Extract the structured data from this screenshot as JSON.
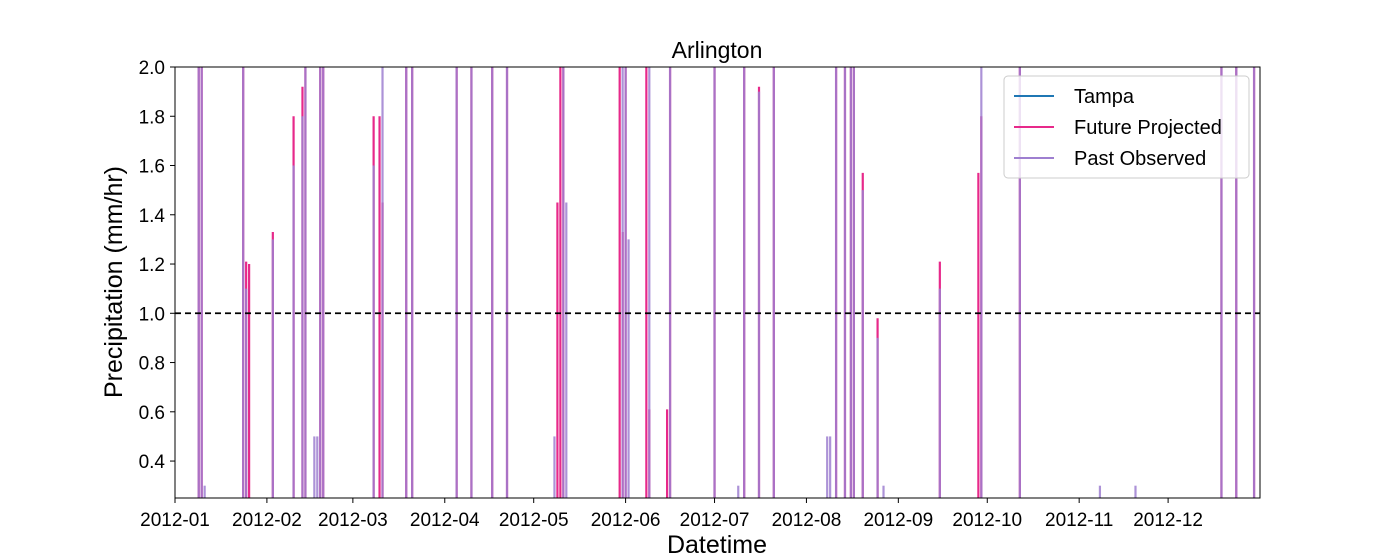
{
  "chart_data": {
    "type": "line",
    "title": "Arlington",
    "xlabel": "Datetime",
    "ylabel": "Precipitation (mm/hr)",
    "xlim": [
      "2012-01-01",
      "2013-01-01"
    ],
    "ylim": [
      0.25,
      2.0
    ],
    "x_ticks": [
      "2012-01",
      "2012-02",
      "2012-03",
      "2012-04",
      "2012-05",
      "2012-06",
      "2012-07",
      "2012-08",
      "2012-09",
      "2012-10",
      "2012-11",
      "2012-12"
    ],
    "y_ticks": [
      0.4,
      0.6,
      0.8,
      1.0,
      1.2,
      1.4,
      1.6,
      1.8,
      2.0
    ],
    "y_tick_labels": [
      "0.4",
      "0.6",
      "0.8",
      "1.0",
      "1.2",
      "1.4",
      "1.6",
      "1.8",
      "2.0"
    ],
    "reference_line": {
      "y": 1.0,
      "style": "dashed",
      "color": "#000000"
    },
    "legend": {
      "location": "top-right"
    },
    "grid": false,
    "series": [
      {
        "name": "Tampa",
        "color": "#1f77b4",
        "x": [],
        "y": []
      },
      {
        "name": "Future Projected",
        "color": "#e7298a",
        "x": [
          "2012-01-09",
          "2012-01-10",
          "2012-01-24",
          "2012-01-25",
          "2012-01-26",
          "2012-02-03",
          "2012-02-10",
          "2012-02-13",
          "2012-02-14",
          "2012-02-19",
          "2012-02-20",
          "2012-03-08",
          "2012-03-10",
          "2012-03-11",
          "2012-03-19",
          "2012-03-21",
          "2012-04-05",
          "2012-04-10",
          "2012-04-17",
          "2012-04-22",
          "2012-05-09",
          "2012-05-10",
          "2012-05-11",
          "2012-05-30",
          "2012-05-31",
          "2012-06-01",
          "2012-06-08",
          "2012-06-09",
          "2012-06-15",
          "2012-06-16",
          "2012-07-01",
          "2012-07-11",
          "2012-07-16",
          "2012-07-21",
          "2012-08-11",
          "2012-08-14",
          "2012-08-16",
          "2012-08-17",
          "2012-08-20",
          "2012-08-25",
          "2012-09-15",
          "2012-09-28",
          "2012-09-29",
          "2012-10-12",
          "2012-12-19",
          "2012-12-24",
          "2012-12-30"
        ],
        "y": [
          2.0,
          2.0,
          2.0,
          1.21,
          1.2,
          1.33,
          1.8,
          1.92,
          2.0,
          2.0,
          2.0,
          1.8,
          1.8,
          1.45,
          2.0,
          2.0,
          2.0,
          2.0,
          2.0,
          2.0,
          1.45,
          2.0,
          2.0,
          2.0,
          1.33,
          2.0,
          2.0,
          0.61,
          0.61,
          2.0,
          2.0,
          2.0,
          1.92,
          2.0,
          2.0,
          2.0,
          2.0,
          2.0,
          1.57,
          0.98,
          1.21,
          1.57,
          1.8,
          2.0,
          2.0,
          2.0,
          2.0
        ]
      },
      {
        "name": "Past Observed",
        "color": "#9e7fd0",
        "x": [
          "2012-01-09",
          "2012-01-10",
          "2012-01-11",
          "2012-01-24",
          "2012-01-25",
          "2012-02-03",
          "2012-02-10",
          "2012-02-13",
          "2012-02-14",
          "2012-02-17",
          "2012-02-18",
          "2012-02-19",
          "2012-02-20",
          "2012-03-08",
          "2012-03-11",
          "2012-03-19",
          "2012-03-21",
          "2012-04-05",
          "2012-04-10",
          "2012-04-17",
          "2012-04-22",
          "2012-05-08",
          "2012-05-11",
          "2012-05-12",
          "2012-05-31",
          "2012-06-01",
          "2012-06-02",
          "2012-06-09",
          "2012-06-16",
          "2012-07-01",
          "2012-07-09",
          "2012-07-11",
          "2012-07-16",
          "2012-07-21",
          "2012-08-08",
          "2012-08-09",
          "2012-08-11",
          "2012-08-14",
          "2012-08-16",
          "2012-08-17",
          "2012-08-20",
          "2012-08-25",
          "2012-08-27",
          "2012-09-15",
          "2012-09-29",
          "2012-10-12",
          "2012-11-08",
          "2012-11-20",
          "2012-12-19",
          "2012-12-24",
          "2012-12-30"
        ],
        "y": [
          2.0,
          2.0,
          0.3,
          2.0,
          1.1,
          1.3,
          1.6,
          1.8,
          2.0,
          0.5,
          0.5,
          2.0,
          2.0,
          1.6,
          2.0,
          2.0,
          2.0,
          2.0,
          2.0,
          2.0,
          2.0,
          0.5,
          2.0,
          1.45,
          2.0,
          2.0,
          1.3,
          2.0,
          2.0,
          2.0,
          0.3,
          2.0,
          1.9,
          2.0,
          0.5,
          0.5,
          2.0,
          2.0,
          2.0,
          2.0,
          1.5,
          0.9,
          0.3,
          1.1,
          2.0,
          2.0,
          0.3,
          0.3,
          2.0,
          2.0,
          2.0
        ]
      }
    ]
  }
}
